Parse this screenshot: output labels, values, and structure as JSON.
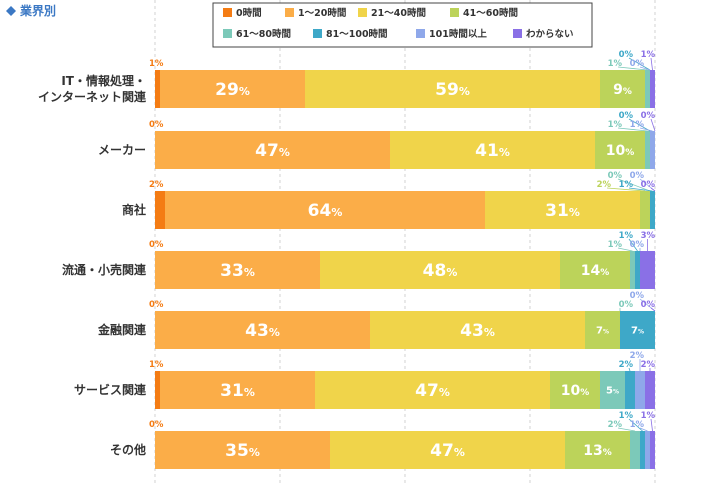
{
  "header": {
    "title": "業界別"
  },
  "chart_data": {
    "type": "bar",
    "orientation": "horizontal",
    "stacked": true,
    "percent_unit": "%",
    "xlim": [
      0,
      100
    ],
    "legend": "top-right",
    "grid": true,
    "categories": [
      "IT・情報処理・\nインターネット関連",
      "メーカー",
      "商社",
      "流通・小売関連",
      "金融関連",
      "サービス関連",
      "その他"
    ],
    "series": [
      {
        "name": "0時間",
        "color": "#f47c14",
        "values": [
          1,
          0,
          2,
          0,
          0,
          1,
          0
        ]
      },
      {
        "name": "1〜20時間",
        "color": "#fbad48",
        "values": [
          29,
          47,
          64,
          33,
          43,
          31,
          35
        ]
      },
      {
        "name": "21〜40時間",
        "color": "#f0d44a",
        "values": [
          59,
          41,
          31,
          48,
          43,
          47,
          47
        ]
      },
      {
        "name": "41〜60時間",
        "color": "#bcd35a",
        "values": [
          9,
          10,
          2,
          14,
          7,
          10,
          13
        ]
      },
      {
        "name": "61〜80時間",
        "color": "#7cc9b9",
        "values": [
          1,
          1,
          0,
          1,
          0,
          5,
          2
        ]
      },
      {
        "name": "81〜100時間",
        "color": "#3ea8c8",
        "values": [
          0,
          0,
          1,
          1,
          7,
          2,
          1
        ]
      },
      {
        "name": "101時間以上",
        "color": "#8fa8ea",
        "values": [
          0,
          1,
          0,
          0,
          0,
          2,
          1
        ]
      },
      {
        "name": "わからない",
        "color": "#8a70e6",
        "values": [
          1,
          0,
          0,
          3,
          0,
          2,
          1
        ]
      }
    ]
  }
}
